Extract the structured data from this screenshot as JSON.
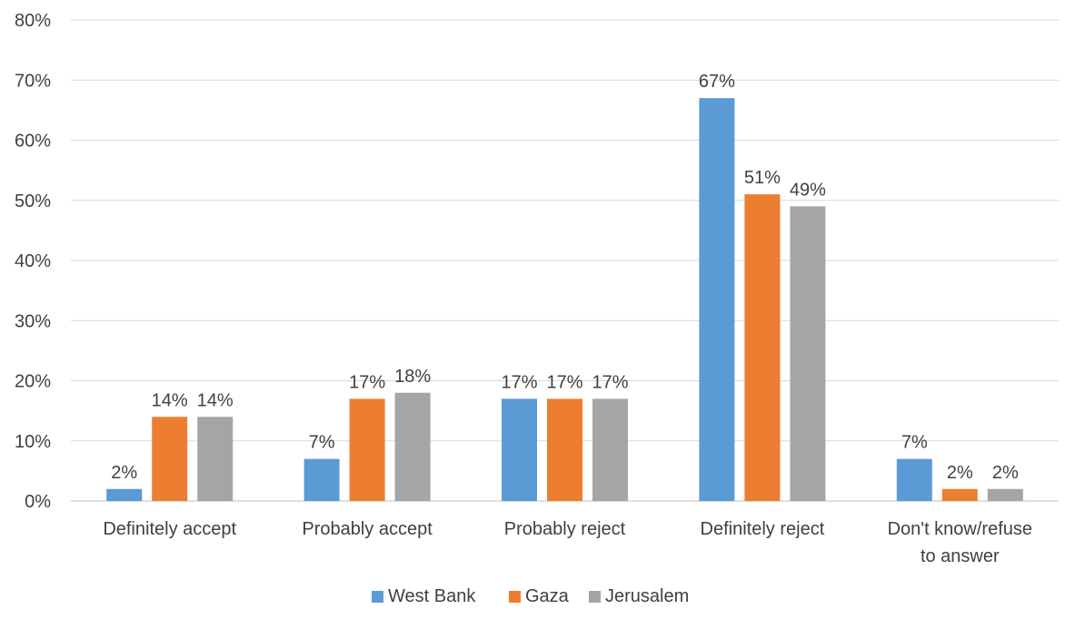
{
  "chart_data": {
    "type": "bar",
    "categories": [
      [
        "Definitely accept"
      ],
      [
        "Probably accept"
      ],
      [
        "Probably reject"
      ],
      [
        "Definitely reject"
      ],
      [
        "Don't know/refuse",
        "to answer"
      ]
    ],
    "series": [
      {
        "name": "West Bank",
        "color": "#5B9BD5",
        "values": [
          2,
          7,
          17,
          67,
          7
        ],
        "labels": [
          "2%",
          "7%",
          "17%",
          "67%",
          "7%"
        ]
      },
      {
        "name": "Gaza",
        "color": "#ED7D31",
        "values": [
          14,
          17,
          17,
          51,
          2
        ],
        "labels": [
          "14%",
          "17%",
          "17%",
          "51%",
          "2%"
        ]
      },
      {
        "name": "Jerusalem",
        "color": "#A5A5A5",
        "values": [
          14,
          18,
          17,
          49,
          2
        ],
        "labels": [
          "14%",
          "18%",
          "17%",
          "49%",
          "2%"
        ]
      }
    ],
    "yticks": [
      "0%",
      "10%",
      "20%",
      "30%",
      "40%",
      "50%",
      "60%",
      "70%",
      "80%"
    ],
    "ylim": [
      0,
      80
    ],
    "grid": true,
    "legend_position": "bottom",
    "title": "",
    "xlabel": "",
    "ylabel": ""
  }
}
